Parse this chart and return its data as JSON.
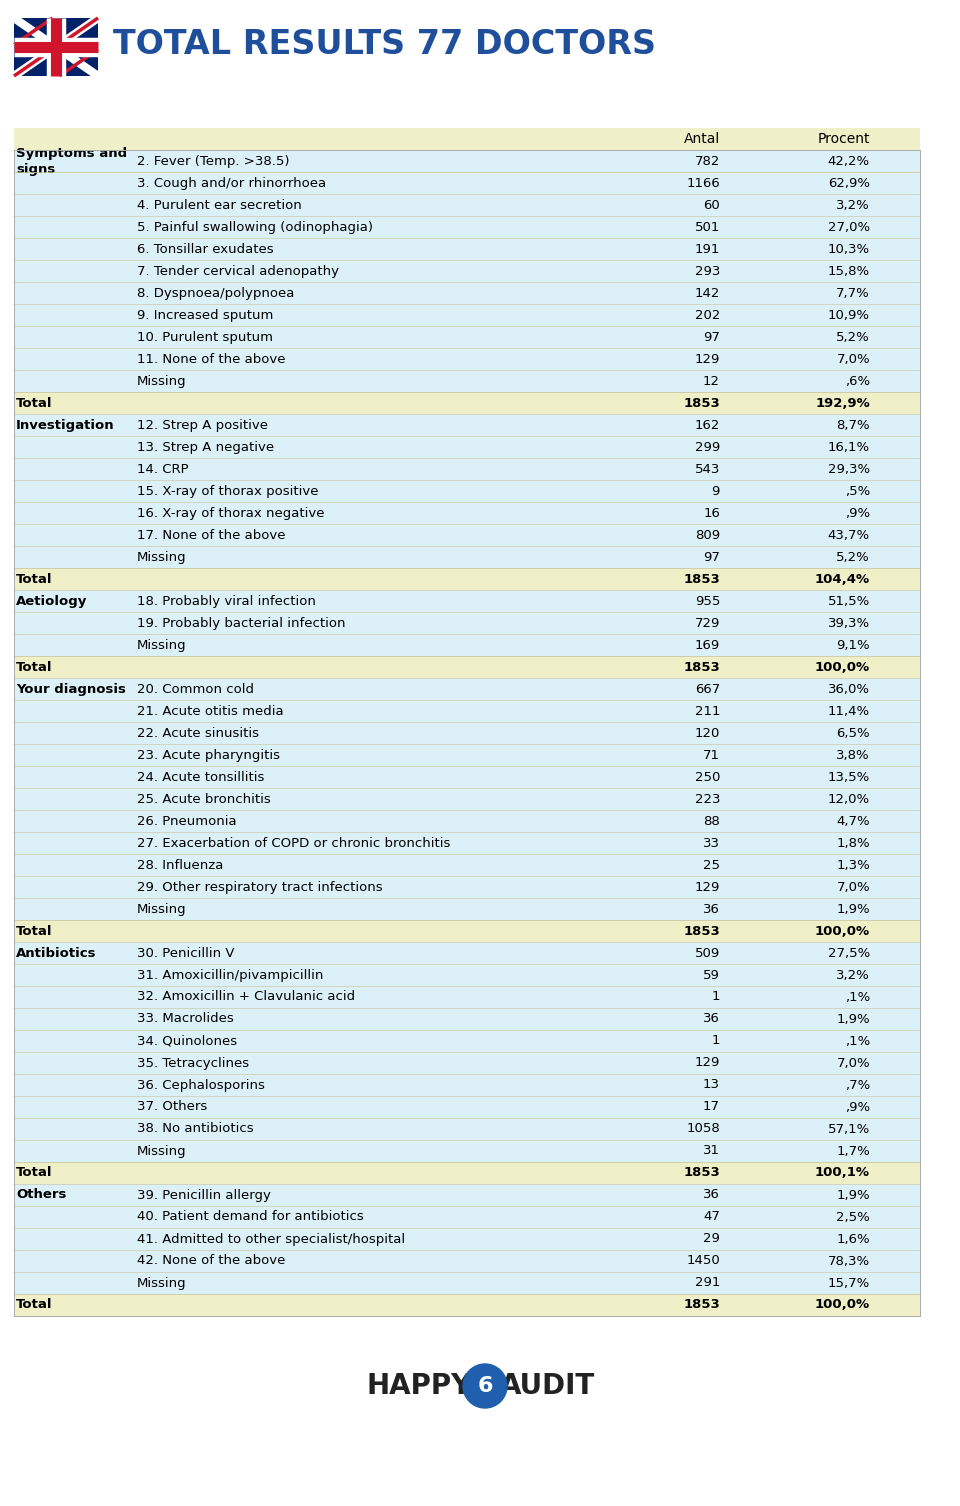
{
  "title": "TOTAL RESULTS 77 DOCTORS",
  "title_color": "#1F4E9B",
  "background_color": "#FFFFFF",
  "header_bg": "#F0F0C8",
  "data_bg_light": "#DCF0F8",
  "total_bg": "#F0F0C8",
  "sections": [
    {
      "section_label": "Symptoms and\nsigns",
      "rows": [
        {
          "label": "2. Fever (Temp. >38.5)",
          "antal": "782",
          "procent": "42,2%"
        },
        {
          "label": "3. Cough and/or rhinorrhoea",
          "antal": "1166",
          "procent": "62,9%"
        },
        {
          "label": "4. Purulent ear secretion",
          "antal": "60",
          "procent": "3,2%"
        },
        {
          "label": "5. Painful swallowing (odinophagia)",
          "antal": "501",
          "procent": "27,0%"
        },
        {
          "label": "6. Tonsillar exudates",
          "antal": "191",
          "procent": "10,3%"
        },
        {
          "label": "7. Tender cervical adenopathy",
          "antal": "293",
          "procent": "15,8%"
        },
        {
          "label": "8. Dyspnoea/polypnoea",
          "antal": "142",
          "procent": "7,7%"
        },
        {
          "label": "9. Increased sputum",
          "antal": "202",
          "procent": "10,9%"
        },
        {
          "label": "10. Purulent sputum",
          "antal": "97",
          "procent": "5,2%"
        },
        {
          "label": "11. None of the above",
          "antal": "129",
          "procent": "7,0%"
        },
        {
          "label": "Missing",
          "antal": "12",
          "procent": ",6%"
        }
      ],
      "total": {
        "antal": "1853",
        "procent": "192,9%"
      }
    },
    {
      "section_label": "Investigation",
      "rows": [
        {
          "label": "12. Strep A positive",
          "antal": "162",
          "procent": "8,7%"
        },
        {
          "label": "13. Strep A negative",
          "antal": "299",
          "procent": "16,1%"
        },
        {
          "label": "14. CRP",
          "antal": "543",
          "procent": "29,3%"
        },
        {
          "label": "15. X-ray of thorax positive",
          "antal": "9",
          "procent": ",5%"
        },
        {
          "label": "16. X-ray of thorax negative",
          "antal": "16",
          "procent": ",9%"
        },
        {
          "label": "17. None of the above",
          "antal": "809",
          "procent": "43,7%"
        },
        {
          "label": "Missing",
          "antal": "97",
          "procent": "5,2%"
        }
      ],
      "total": {
        "antal": "1853",
        "procent": "104,4%"
      }
    },
    {
      "section_label": "Aetiology",
      "rows": [
        {
          "label": "18. Probably viral infection",
          "antal": "955",
          "procent": "51,5%"
        },
        {
          "label": "19. Probably bacterial infection",
          "antal": "729",
          "procent": "39,3%"
        },
        {
          "label": "Missing",
          "antal": "169",
          "procent": "9,1%"
        }
      ],
      "total": {
        "antal": "1853",
        "procent": "100,0%"
      }
    },
    {
      "section_label": "Your diagnosis",
      "rows": [
        {
          "label": "20. Common cold",
          "antal": "667",
          "procent": "36,0%"
        },
        {
          "label": "21. Acute otitis media",
          "antal": "211",
          "procent": "11,4%"
        },
        {
          "label": "22. Acute sinusitis",
          "antal": "120",
          "procent": "6,5%"
        },
        {
          "label": "23. Acute pharyngitis",
          "antal": "71",
          "procent": "3,8%"
        },
        {
          "label": "24. Acute tonsillitis",
          "antal": "250",
          "procent": "13,5%"
        },
        {
          "label": "25. Acute bronchitis",
          "antal": "223",
          "procent": "12,0%"
        },
        {
          "label": "26. Pneumonia",
          "antal": "88",
          "procent": "4,7%"
        },
        {
          "label": "27. Exacerbation of COPD or chronic bronchitis",
          "antal": "33",
          "procent": "1,8%"
        },
        {
          "label": "28. Influenza",
          "antal": "25",
          "procent": "1,3%"
        },
        {
          "label": "29. Other respiratory tract infections",
          "antal": "129",
          "procent": "7,0%"
        },
        {
          "label": "Missing",
          "antal": "36",
          "procent": "1,9%"
        }
      ],
      "total": {
        "antal": "1853",
        "procent": "100,0%"
      }
    },
    {
      "section_label": "Antibiotics",
      "rows": [
        {
          "label": "30. Penicillin V",
          "antal": "509",
          "procent": "27,5%"
        },
        {
          "label": "31. Amoxicillin/pivampicillin",
          "antal": "59",
          "procent": "3,2%"
        },
        {
          "label": "32. Amoxicillin + Clavulanic acid",
          "antal": "1",
          "procent": ",1%"
        },
        {
          "label": "33. Macrolides",
          "antal": "36",
          "procent": "1,9%"
        },
        {
          "label": "34. Quinolones",
          "antal": "1",
          "procent": ",1%"
        },
        {
          "label": "35. Tetracyclines",
          "antal": "129",
          "procent": "7,0%"
        },
        {
          "label": "36. Cephalosporins",
          "antal": "13",
          "procent": ",7%"
        },
        {
          "label": "37. Others",
          "antal": "17",
          "procent": ",9%"
        },
        {
          "label": "38. No antibiotics",
          "antal": "1058",
          "procent": "57,1%"
        },
        {
          "label": "Missing",
          "antal": "31",
          "procent": "1,7%"
        }
      ],
      "total": {
        "antal": "1853",
        "procent": "100,1%"
      }
    },
    {
      "section_label": "Others",
      "rows": [
        {
          "label": "39. Penicillin allergy",
          "antal": "36",
          "procent": "1,9%"
        },
        {
          "label": "40. Patient demand for antibiotics",
          "antal": "47",
          "procent": "2,5%"
        },
        {
          "label": "41. Admitted to other specialist/hospital",
          "antal": "29",
          "procent": "1,6%"
        },
        {
          "label": "42. None of the above",
          "antal": "1450",
          "procent": "78,3%"
        },
        {
          "label": "Missing",
          "antal": "291",
          "procent": "15,7%"
        }
      ],
      "total": {
        "antal": "1853",
        "procent": "100,0%"
      }
    }
  ],
  "font_size": 9.5,
  "header_font_size": 10,
  "title_font_size": 24
}
